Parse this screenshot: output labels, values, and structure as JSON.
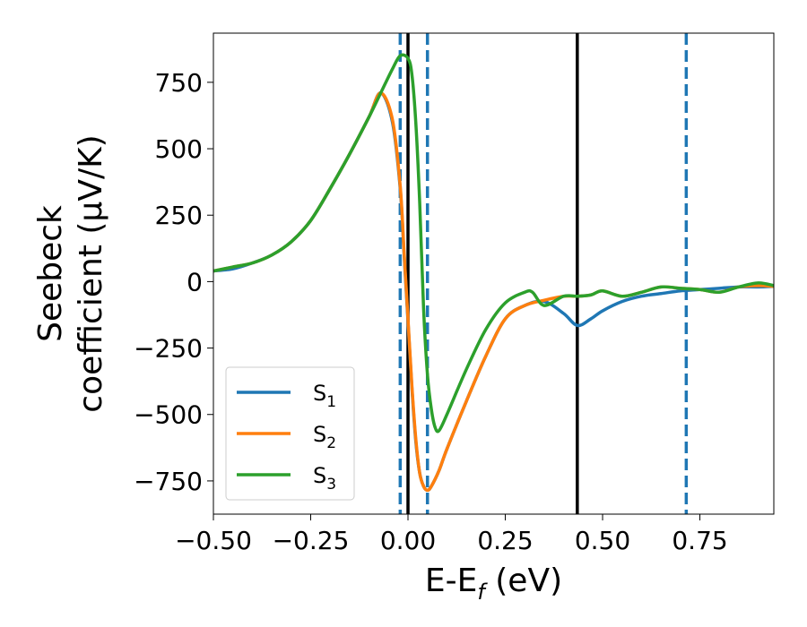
{
  "chart_data": {
    "type": "line",
    "xlabel": "E-E_f (eV)",
    "ylabel_line1": "Seebeck",
    "ylabel_line2": "coefficient  (μV/K)",
    "xlim": [
      -0.5,
      0.94
    ],
    "ylim": [
      -875,
      935
    ],
    "xticks": [
      -0.5,
      -0.25,
      0.0,
      0.25,
      0.5,
      0.75
    ],
    "xtick_labels": [
      "−0.50",
      "−0.25",
      "0.00",
      "0.25",
      "0.50",
      "0.75"
    ],
    "yticks": [
      -750,
      -500,
      -250,
      0,
      250,
      500,
      750
    ],
    "ytick_labels": [
      "−750",
      "−500",
      "−250",
      "0",
      "250",
      "500",
      "750"
    ],
    "grid": false,
    "legend_position": "lower-left",
    "vlines_solid": [
      0.0,
      0.435
    ],
    "vlines_dashed": [
      -0.02,
      0.05,
      0.715
    ],
    "series": [
      {
        "name": "S1",
        "color": "#1f77b4",
        "x": [
          -0.5,
          -0.45,
          -0.4,
          -0.35,
          -0.3,
          -0.25,
          -0.2,
          -0.15,
          -0.1,
          -0.07,
          -0.04,
          -0.02,
          -0.01,
          0.0,
          0.01,
          0.02,
          0.03,
          0.04,
          0.05,
          0.06,
          0.08,
          0.1,
          0.15,
          0.2,
          0.25,
          0.3,
          0.35,
          0.4,
          0.435,
          0.47,
          0.5,
          0.55,
          0.6,
          0.65,
          0.7,
          0.75,
          0.8,
          0.85,
          0.9,
          0.94
        ],
        "y": [
          40,
          48,
          70,
          100,
          150,
          230,
          350,
          480,
          620,
          710,
          600,
          350,
          100,
          -150,
          -400,
          -600,
          -720,
          -770,
          -785,
          -770,
          -710,
          -630,
          -450,
          -280,
          -140,
          -90,
          -75,
          -120,
          -165,
          -140,
          -110,
          -75,
          -55,
          -45,
          -35,
          -30,
          -25,
          -20,
          -20,
          -18
        ]
      },
      {
        "name": "S2",
        "color": "#ff7f0e",
        "x": [
          -0.5,
          -0.45,
          -0.4,
          -0.35,
          -0.3,
          -0.25,
          -0.2,
          -0.15,
          -0.1,
          -0.07,
          -0.04,
          -0.02,
          -0.01,
          0.0,
          0.01,
          0.02,
          0.03,
          0.04,
          0.05,
          0.06,
          0.08,
          0.1,
          0.15,
          0.2,
          0.25,
          0.3,
          0.35,
          0.4,
          0.435,
          0.47,
          0.5,
          0.55,
          0.6,
          0.65,
          0.7,
          0.75,
          0.8,
          0.85,
          0.9,
          0.94
        ],
        "y": [
          40,
          55,
          70,
          100,
          150,
          230,
          350,
          480,
          620,
          710,
          610,
          360,
          110,
          -140,
          -390,
          -590,
          -720,
          -770,
          -785,
          -770,
          -710,
          -630,
          -450,
          -280,
          -140,
          -90,
          -70,
          -55,
          -55,
          -50,
          -35,
          -55,
          -40,
          -20,
          -25,
          -30,
          -40,
          -20,
          -15,
          -18
        ]
      },
      {
        "name": "S3",
        "color": "#2ca02c",
        "x": [
          -0.5,
          -0.45,
          -0.4,
          -0.35,
          -0.3,
          -0.25,
          -0.2,
          -0.15,
          -0.1,
          -0.07,
          -0.04,
          -0.02,
          0.0,
          0.01,
          0.02,
          0.03,
          0.04,
          0.05,
          0.06,
          0.07,
          0.08,
          0.1,
          0.15,
          0.2,
          0.25,
          0.3,
          0.32,
          0.35,
          0.4,
          0.435,
          0.47,
          0.5,
          0.55,
          0.6,
          0.65,
          0.7,
          0.75,
          0.8,
          0.85,
          0.9,
          0.94
        ],
        "y": [
          40,
          55,
          70,
          100,
          150,
          230,
          350,
          480,
          620,
          710,
          800,
          850,
          840,
          780,
          600,
          300,
          -100,
          -350,
          -480,
          -550,
          -560,
          -500,
          -330,
          -180,
          -80,
          -40,
          -40,
          -90,
          -55,
          -55,
          -50,
          -35,
          -55,
          -40,
          -20,
          -25,
          -30,
          -40,
          -20,
          -5,
          -15
        ]
      }
    ]
  }
}
